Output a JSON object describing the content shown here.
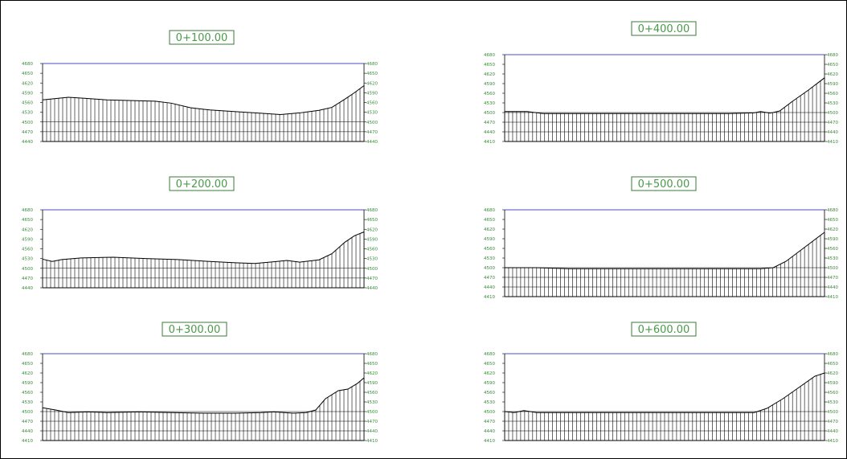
{
  "colors": {
    "frame": "#000000",
    "top_line": "#4d4dc8",
    "label_text": "#4a9a4a",
    "label_box": "#3a7a3a",
    "tick_text": "#3a8a3a",
    "grid": "#000000"
  },
  "sections": [
    {
      "station": "0+100.00",
      "ylim": [
        4440,
        4680
      ],
      "y_ticks": [
        "4680",
        "4650",
        "4620",
        "4590",
        "4560",
        "4530",
        "4500",
        "4470",
        "4440"
      ],
      "ground_profile": [
        [
          0,
          4568
        ],
        [
          0.04,
          4572
        ],
        [
          0.08,
          4576
        ],
        [
          0.13,
          4573
        ],
        [
          0.2,
          4568
        ],
        [
          0.28,
          4566
        ],
        [
          0.35,
          4564
        ],
        [
          0.4,
          4558
        ],
        [
          0.46,
          4544
        ],
        [
          0.52,
          4537
        ],
        [
          0.6,
          4532
        ],
        [
          0.68,
          4527
        ],
        [
          0.74,
          4523
        ],
        [
          0.8,
          4528
        ],
        [
          0.86,
          4536
        ],
        [
          0.9,
          4545
        ],
        [
          0.94,
          4570
        ],
        [
          0.97,
          4590
        ],
        [
          1,
          4612
        ]
      ]
    },
    {
      "station": "0+400.00",
      "ylim": [
        4410,
        4680
      ],
      "y_ticks": [
        "4680",
        "4650",
        "4620",
        "4590",
        "4560",
        "4530",
        "4500",
        "4470",
        "4440",
        "4410"
      ],
      "ground_profile": [
        [
          0,
          4503
        ],
        [
          0.07,
          4503
        ],
        [
          0.12,
          4497
        ],
        [
          0.3,
          4497
        ],
        [
          0.5,
          4497
        ],
        [
          0.7,
          4497
        ],
        [
          0.78,
          4499
        ],
        [
          0.8,
          4503
        ],
        [
          0.83,
          4498
        ],
        [
          0.86,
          4505
        ],
        [
          0.9,
          4535
        ],
        [
          0.95,
          4570
        ],
        [
          1,
          4608
        ]
      ]
    },
    {
      "station": "0+200.00",
      "ylim": [
        4440,
        4680
      ],
      "y_ticks": [
        "4680",
        "4650",
        "4620",
        "4590",
        "4560",
        "4530",
        "4500",
        "4470",
        "4440"
      ],
      "ground_profile": [
        [
          0,
          4528
        ],
        [
          0.03,
          4521
        ],
        [
          0.06,
          4527
        ],
        [
          0.12,
          4532
        ],
        [
          0.22,
          4534
        ],
        [
          0.32,
          4530
        ],
        [
          0.42,
          4527
        ],
        [
          0.52,
          4521
        ],
        [
          0.6,
          4517
        ],
        [
          0.66,
          4515
        ],
        [
          0.72,
          4520
        ],
        [
          0.76,
          4524
        ],
        [
          0.8,
          4519
        ],
        [
          0.86,
          4526
        ],
        [
          0.9,
          4545
        ],
        [
          0.94,
          4580
        ],
        [
          0.97,
          4600
        ],
        [
          1,
          4612
        ]
      ]
    },
    {
      "station": "0+500.00",
      "ylim": [
        4410,
        4680
      ],
      "y_ticks": [
        "4680",
        "4650",
        "4620",
        "4590",
        "4560",
        "4530",
        "4500",
        "4470",
        "4440",
        "4410"
      ],
      "ground_profile": [
        [
          0,
          4500
        ],
        [
          0.1,
          4500
        ],
        [
          0.2,
          4497
        ],
        [
          0.4,
          4497
        ],
        [
          0.6,
          4497
        ],
        [
          0.8,
          4497
        ],
        [
          0.84,
          4500
        ],
        [
          0.88,
          4520
        ],
        [
          0.92,
          4550
        ],
        [
          0.96,
          4580
        ],
        [
          1,
          4610
        ]
      ]
    },
    {
      "station": "0+300.00",
      "ylim": [
        4410,
        4680
      ],
      "y_ticks": [
        "4680",
        "4650",
        "4620",
        "4590",
        "4560",
        "4530",
        "4500",
        "4470",
        "4440",
        "4410"
      ],
      "ground_profile": [
        [
          0,
          4512
        ],
        [
          0.04,
          4505
        ],
        [
          0.08,
          4497
        ],
        [
          0.14,
          4499
        ],
        [
          0.2,
          4497
        ],
        [
          0.3,
          4499
        ],
        [
          0.4,
          4497
        ],
        [
          0.5,
          4495
        ],
        [
          0.6,
          4495
        ],
        [
          0.68,
          4497
        ],
        [
          0.72,
          4499
        ],
        [
          0.78,
          4495
        ],
        [
          0.82,
          4497
        ],
        [
          0.85,
          4505
        ],
        [
          0.88,
          4540
        ],
        [
          0.92,
          4565
        ],
        [
          0.95,
          4570
        ],
        [
          0.98,
          4588
        ],
        [
          1,
          4605
        ]
      ]
    },
    {
      "station": "0+600.00",
      "ylim": [
        4410,
        4680
      ],
      "y_ticks": [
        "4680",
        "4650",
        "4620",
        "4590",
        "4560",
        "4530",
        "4500",
        "4470",
        "4440",
        "4410"
      ],
      "ground_profile": [
        [
          0,
          4500
        ],
        [
          0.03,
          4497
        ],
        [
          0.06,
          4503
        ],
        [
          0.1,
          4497
        ],
        [
          0.3,
          4497
        ],
        [
          0.5,
          4497
        ],
        [
          0.7,
          4497
        ],
        [
          0.78,
          4497
        ],
        [
          0.82,
          4510
        ],
        [
          0.87,
          4540
        ],
        [
          0.92,
          4575
        ],
        [
          0.97,
          4610
        ],
        [
          1,
          4620
        ]
      ]
    }
  ]
}
